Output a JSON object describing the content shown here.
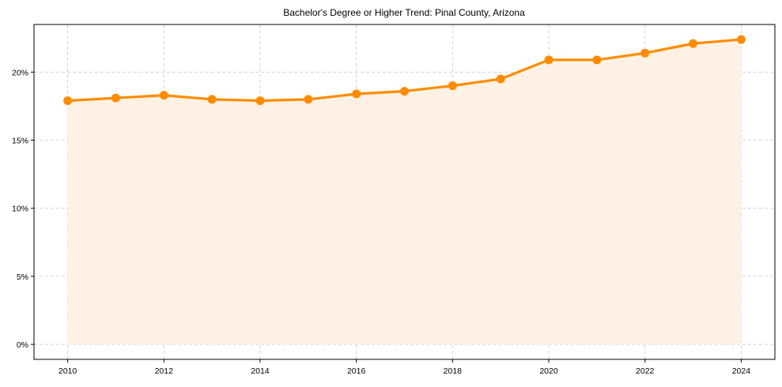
{
  "chart_data": {
    "type": "area",
    "title": "Bachelor's Degree or Higher Trend: Pinal County, Arizona",
    "xlabel": "",
    "ylabel": "",
    "x": [
      2010,
      2011,
      2012,
      2013,
      2014,
      2015,
      2016,
      2017,
      2018,
      2019,
      2020,
      2021,
      2022,
      2023,
      2024
    ],
    "series": [
      {
        "name": "Bachelor's Degree or Higher",
        "values": [
          17.9,
          18.1,
          18.3,
          18.0,
          17.9,
          18.0,
          18.4,
          18.6,
          19.0,
          19.5,
          20.9,
          20.9,
          21.4,
          22.1,
          22.4
        ],
        "color": "#FF8C00",
        "fill_color": "#FFF1E3",
        "marker": "circle"
      }
    ],
    "xticks": [
      2010,
      2012,
      2014,
      2016,
      2018,
      2020,
      2022,
      2024
    ],
    "xtick_labels": [
      "2010",
      "2012",
      "2014",
      "2016",
      "2018",
      "2020",
      "2022",
      "2024"
    ],
    "yticks": [
      0,
      5,
      10,
      15,
      20
    ],
    "ytick_labels": [
      "0%",
      "5%",
      "10%",
      "15%",
      "20%"
    ],
    "xlim": [
      2009.3,
      2024.7
    ],
    "ylim": [
      -1.1,
      23.5
    ],
    "grid": true,
    "grid_style": "dashed",
    "legend": null
  }
}
